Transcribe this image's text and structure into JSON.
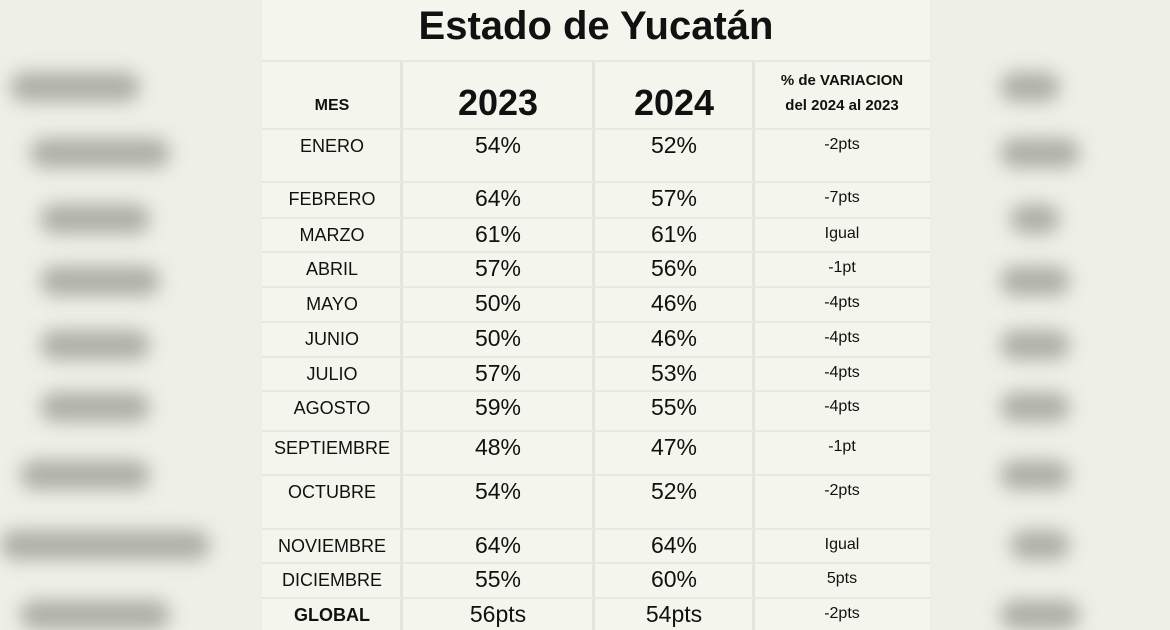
{
  "table": {
    "title": "Estado de Yucatán",
    "headers": {
      "mes": "MES",
      "y2023": "2023",
      "y2024": "2024",
      "variation_line1": "% de VARIACION",
      "variation_line2": "del 2024 al 2023"
    },
    "rows": [
      {
        "mes": "ENERO",
        "y2023": "54%",
        "y2024": "52%",
        "var": "-2pts"
      },
      {
        "mes": "FEBRERO",
        "y2023": "64%",
        "y2024": "57%",
        "var": "-7pts"
      },
      {
        "mes": "MARZO",
        "y2023": "61%",
        "y2024": "61%",
        "var": "Igual"
      },
      {
        "mes": "ABRIL",
        "y2023": "57%",
        "y2024": "56%",
        "var": "-1pt"
      },
      {
        "mes": "MAYO",
        "y2023": "50%",
        "y2024": "46%",
        "var": "-4pts"
      },
      {
        "mes": "JUNIO",
        "y2023": "50%",
        "y2024": "46%",
        "var": "-4pts"
      },
      {
        "mes": "JULIO",
        "y2023": "57%",
        "y2024": "53%",
        "var": "-4pts"
      },
      {
        "mes": "AGOSTO",
        "y2023": "59%",
        "y2024": "55%",
        "var": "-4pts"
      },
      {
        "mes": "SEPTIEMBRE",
        "y2023": "48%",
        "y2024": "47%",
        "var": "-1pt"
      },
      {
        "mes": "OCTUBRE",
        "y2023": "54%",
        "y2024": "52%",
        "var": "-2pts"
      },
      {
        "mes": "NOVIEMBRE",
        "y2023": "64%",
        "y2024": "64%",
        "var": "Igual"
      },
      {
        "mes": "DICIEMBRE",
        "y2023": "55%",
        "y2024": "60%",
        "var": "5pts"
      },
      {
        "mes": "GLOBAL",
        "y2023": "56pts",
        "y2024": "54pts",
        "var": "-2pts"
      }
    ]
  },
  "colors": {
    "background": "#eef0e8",
    "table_background": "#f4f6ee",
    "text": "#111111"
  }
}
